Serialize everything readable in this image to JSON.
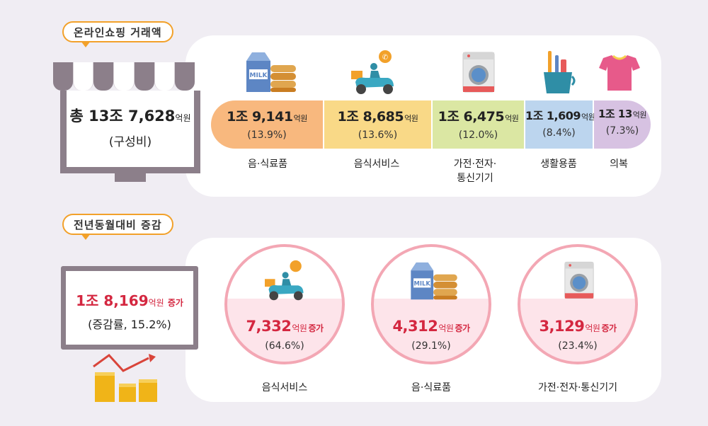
{
  "section1": {
    "tag": "온라인쇼핑 거래액",
    "total": {
      "prefix": "총 ",
      "value": "13조 7,628",
      "unit": "억원",
      "note": "(구성비)"
    },
    "categories": [
      {
        "amount": "1조 9,141",
        "unit": "억원",
        "pct": "(13.9%)",
        "label": "음·식료품",
        "color": "#f8b87e",
        "share": 13.9,
        "icon": "milk-bread-icon"
      },
      {
        "amount": "1조 8,685",
        "unit": "억원",
        "pct": "(13.6%)",
        "label": "음식서비스",
        "color": "#f9d987",
        "share": 13.6,
        "icon": "delivery-scooter-icon"
      },
      {
        "amount": "1조 6,475",
        "unit": "억원",
        "pct": "(12.0%)",
        "label_line1": "가전·전자·",
        "label_line2": "통신기기",
        "color": "#dbe7a3",
        "share": 12.0,
        "icon": "washing-machine-icon"
      },
      {
        "amount": "1조 1,609",
        "unit": "억원",
        "pct": "(8.4%)",
        "label": "생활용품",
        "color": "#bcd5ee",
        "share": 8.4,
        "icon": "toothbrush-cup-icon"
      },
      {
        "amount": "1조 13",
        "unit": "억원",
        "pct": "(7.3%)",
        "label": "의복",
        "color": "#d7c2e2",
        "share": 7.3,
        "icon": "tshirt-icon"
      }
    ]
  },
  "section2": {
    "tag": "전년동월대비 증감",
    "total": {
      "value": "1조 8,169",
      "unit": "억원",
      "inc": "증가",
      "note": "(증감률, 15.2%)"
    },
    "items": [
      {
        "amount": "7,332",
        "unit": "억원",
        "inc": "증가",
        "pct": "(64.6%)",
        "label": "음식서비스",
        "icon": "delivery-scooter-icon"
      },
      {
        "amount": "4,312",
        "unit": "억원",
        "inc": "증가",
        "pct": "(29.1%)",
        "label": "음·식료품",
        "icon": "milk-bread-icon"
      },
      {
        "amount": "3,129",
        "unit": "억원",
        "inc": "증가",
        "pct": "(23.4%)",
        "label": "가전·전자·통신기기",
        "icon": "washing-machine-icon"
      }
    ]
  },
  "colors": {
    "accent": "#f2a12a",
    "frame": "#8c7f8a",
    "increase": "#d42740",
    "circle_border": "#f3a7b4",
    "circle_fill": "#fde4ea"
  }
}
